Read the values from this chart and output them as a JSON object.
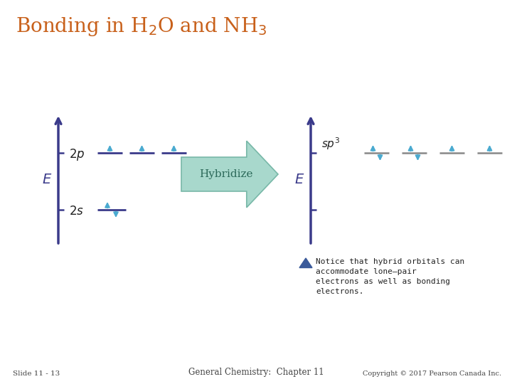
{
  "title": "Bonding in H$_2$O and NH$_3$",
  "title_color": "#C8601A",
  "title_fontsize": 20,
  "background_color": "#ffffff",
  "axis_color": "#3A3A8A",
  "orbital_line_color_left": "#3A3A8A",
  "orbital_line_color_right": "#888888",
  "electron_arrow_color": "#4AAAD0",
  "hybridize_arrow_fill": "#A8D8CC",
  "hybridize_arrow_edge": "#78B8A8",
  "hybridize_text": "Hybridize",
  "hybridize_text_color": "#2A6858",
  "E_label_color": "#3A3A8A",
  "orbital_label_color": "#222222",
  "label_2p": "2p",
  "label_2s": "2s",
  "label_sp3": "sp$^3$",
  "notice_triangle_color": "#3A5A9A",
  "footer_slide": "Slide 11 - 13",
  "footer_center": "General Chemistry:  Chapter 11",
  "footer_right": "Copyright © 2017 Pearson Canada Inc.",
  "footer_fontsize": 7.5,
  "footer_color": "#444444"
}
